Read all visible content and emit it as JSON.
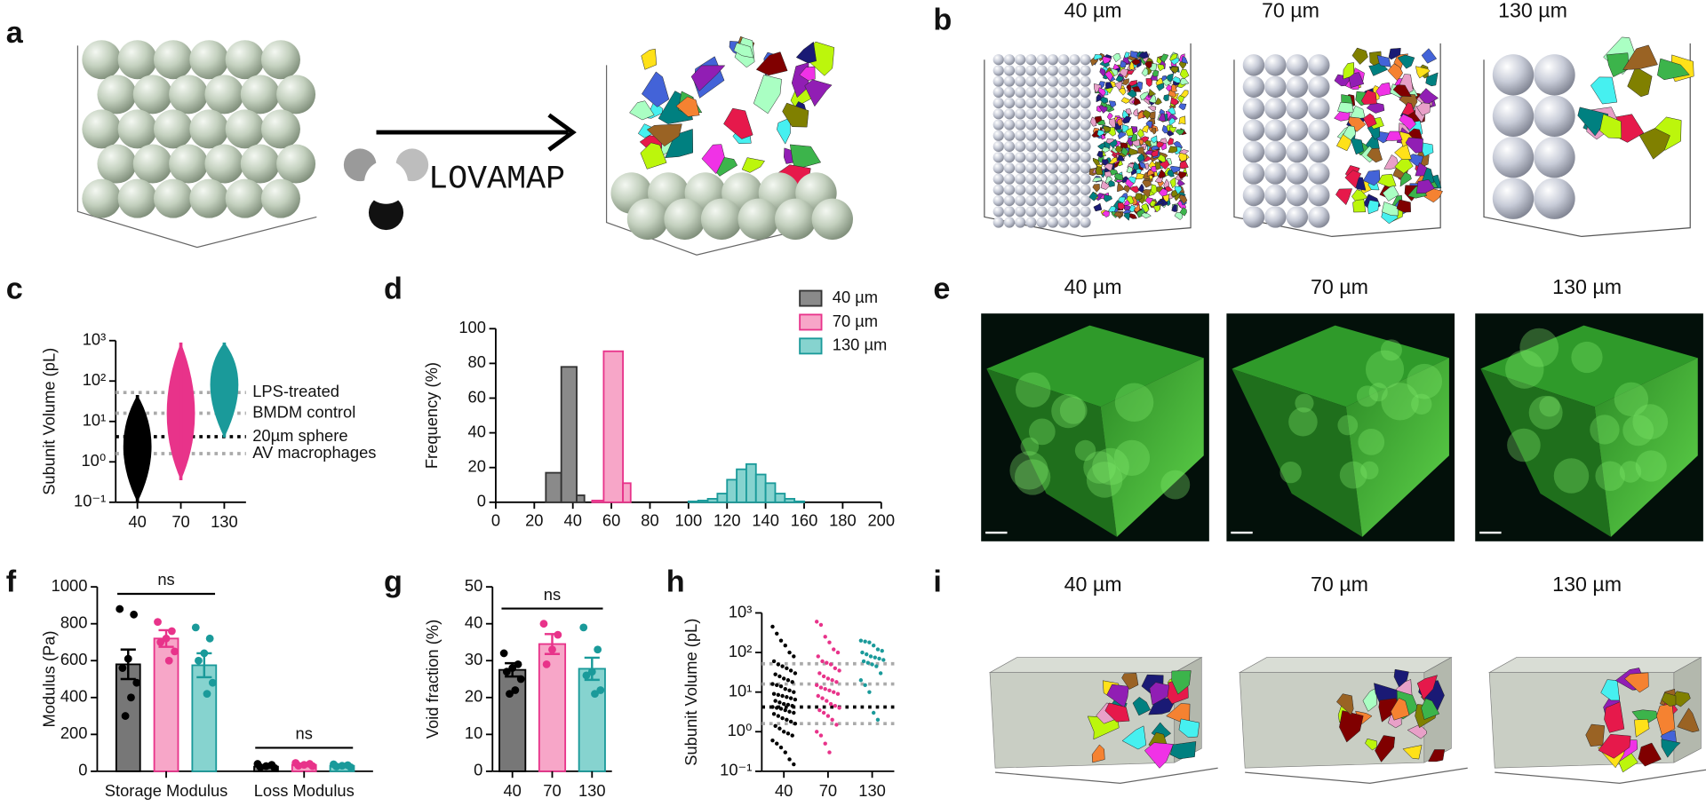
{
  "figure": {
    "panel_labels": [
      "a",
      "b",
      "c",
      "d",
      "e",
      "f",
      "g",
      "h",
      "i"
    ],
    "a": {
      "text": "LOVAMAP"
    },
    "b": {
      "titles": [
        "40 µm",
        "70 µm",
        "130 µm"
      ]
    },
    "e": {
      "titles": [
        "40 µm",
        "70 µm",
        "130 µm"
      ]
    },
    "i": {
      "titles": [
        "40 µm",
        "70 µm",
        "130 µm"
      ]
    }
  },
  "chart_data": [
    {
      "type": "violin",
      "ylabel": "Subunit Volume (pL)",
      "log_y": true,
      "categories": [
        "40",
        "70",
        "130"
      ],
      "ylim": [
        0.1,
        1000
      ],
      "yticks": [
        {
          "value": 0.1,
          "label": "10⁻¹"
        },
        {
          "value": 1,
          "label": "10⁰"
        },
        {
          "value": 10,
          "label": "10¹"
        },
        {
          "value": 100,
          "label": "10²"
        },
        {
          "value": 1000,
          "label": "10³"
        }
      ],
      "min": [
        0.1,
        0.35,
        4
      ],
      "peak": [
        2.7,
        14,
        110
      ],
      "max": [
        45,
        900,
        900
      ],
      "colors": [
        "#000000",
        "#e8338a",
        "#1a9a9a"
      ],
      "reference_lines": [
        {
          "value": 52,
          "label": "LPS-treated",
          "color": "#aaaaaa"
        },
        {
          "value": 16,
          "label": "BMDM control",
          "color": "#aaaaaa"
        },
        {
          "value": 4.2,
          "label": "20µm sphere",
          "color": "#000000"
        },
        {
          "value": 1.6,
          "label": "AV macrophages",
          "color": "#aaaaaa"
        }
      ]
    },
    {
      "type": "histogram",
      "ylabel": "Frequency (%)",
      "legend": "upper right",
      "xlim": [
        0,
        200
      ],
      "xticks": [
        0,
        20,
        40,
        60,
        80,
        100,
        120,
        140,
        160,
        180,
        200
      ],
      "ylim": [
        0,
        100
      ],
      "yticks": [
        0,
        20,
        40,
        60,
        80,
        100
      ],
      "series": [
        {
          "name": "40 µm",
          "color": "#333333",
          "fill_color": "#8a8a8a",
          "bins": [
            26,
            34,
            42,
            46
          ],
          "values": [
            17,
            78,
            4
          ]
        },
        {
          "name": "70 µm",
          "color": "#e8338a",
          "fill_color": "#f7a6c8",
          "bins": [
            50,
            56,
            66,
            70
          ],
          "values": [
            1,
            87,
            11
          ]
        },
        {
          "name": "130 µm",
          "color": "#1a9a9a",
          "fill_color": "#86d3cf",
          "bins": [
            100,
            105,
            110,
            115,
            120,
            125,
            130,
            135,
            140,
            145,
            150,
            155,
            160
          ],
          "values": [
            0.5,
            1,
            2,
            5,
            13,
            19,
            22,
            16,
            11,
            5,
            2,
            0.5
          ]
        }
      ]
    },
    {
      "type": "bar_dot",
      "ylabel": "Modulus (Pa)",
      "categories": [
        "Storage Modulus",
        "Loss Modulus"
      ],
      "ylim": [
        0,
        1000
      ],
      "yticks": [
        0,
        200,
        400,
        600,
        800,
        1000
      ],
      "annotations": [
        "ns",
        "ns"
      ],
      "series": [
        {
          "color": "#000000",
          "fill_color": "#777777",
          "values": [
            580,
            25
          ],
          "errors": [
            80,
            5
          ],
          "points": [
            [
              880,
              850,
              610,
              560,
              480,
              400,
              300
            ],
            [
              40,
              35,
              28,
              22,
              18
            ]
          ]
        },
        {
          "color": "#e8338a",
          "fill_color": "#f7a6c8",
          "values": [
            720,
            35
          ],
          "errors": [
            45,
            5
          ],
          "points": [
            [
              810,
              760,
              720,
              700,
              650,
              600
            ],
            [
              45,
              40,
              35,
              30,
              28
            ]
          ]
        },
        {
          "color": "#1a9a9a",
          "fill_color": "#86d3cf",
          "values": [
            575,
            30
          ],
          "errors": [
            65,
            5
          ],
          "points": [
            [
              780,
              720,
              640,
              600,
              480,
              420
            ],
            [
              38,
              33,
              30,
              26,
              22
            ]
          ]
        }
      ]
    },
    {
      "type": "bar_dot",
      "ylabel": "Void fraction (%)",
      "categories": [
        "40",
        "70",
        "130"
      ],
      "ylim": [
        0,
        50
      ],
      "yticks": [
        0,
        10,
        20,
        30,
        40,
        50
      ],
      "annotations": [
        "ns"
      ],
      "colors": [
        "#000000",
        "#e8338a",
        "#1a9a9a"
      ],
      "fill_colors": [
        "#777777",
        "#f7a6c8",
        "#86d3cf"
      ],
      "values": [
        27.5,
        34.5,
        27.8
      ],
      "errors": [
        1.8,
        2.7,
        3
      ],
      "points": [
        [
          32,
          29,
          28,
          27,
          25,
          22,
          21
        ],
        [
          40,
          37,
          33,
          29
        ],
        [
          39,
          33,
          27,
          26,
          22,
          21
        ]
      ]
    },
    {
      "type": "strip",
      "ylabel": "Subunit Volume (pL)",
      "log_y": true,
      "categories": [
        "40",
        "70",
        "130"
      ],
      "ylim": [
        0.1,
        1000
      ],
      "yticks": [
        {
          "value": 0.1,
          "label": "10⁻¹"
        },
        {
          "value": 1,
          "label": "10⁰"
        },
        {
          "value": 10,
          "label": "10¹"
        },
        {
          "value": 100,
          "label": "10²"
        },
        {
          "value": 1000,
          "label": "10³"
        }
      ],
      "colors": [
        "#000000",
        "#e8338a",
        "#1a9a9a"
      ],
      "reference_lines": [
        {
          "value": 52,
          "color": "#aaaaaa"
        },
        {
          "value": 16,
          "color": "#aaaaaa"
        },
        {
          "value": 4.2,
          "color": "#000000"
        },
        {
          "value": 1.6,
          "color": "#aaaaaa"
        }
      ],
      "points": [
        [
          450,
          300,
          200,
          150,
          100,
          80,
          60,
          50,
          45,
          40,
          35,
          30,
          28,
          25,
          22,
          20,
          18,
          16,
          15,
          14,
          12,
          11,
          10,
          9,
          8.5,
          8,
          7.5,
          7,
          6.5,
          6,
          5.5,
          5,
          4.8,
          4.5,
          4.2,
          4,
          3.8,
          3.5,
          3.2,
          3,
          2.8,
          2.5,
          2.2,
          2,
          1.8,
          1.6,
          1.4,
          1.2,
          1,
          0.9,
          0.8,
          0.6,
          0.5,
          0.4,
          0.3,
          0.2,
          0.15
        ],
        [
          600,
          500,
          250,
          180,
          120,
          100,
          80,
          60,
          55,
          50,
          40,
          35,
          30,
          25,
          22,
          20,
          18,
          15,
          13,
          12,
          11,
          10,
          9,
          8,
          7,
          6,
          5,
          4.5,
          4,
          3.5,
          3,
          2.5,
          2,
          1.5,
          1,
          0.8,
          0.5,
          0.3
        ],
        [
          200,
          190,
          180,
          150,
          120,
          110,
          100,
          90,
          80,
          75,
          70,
          65,
          60,
          55,
          50,
          45,
          30,
          20,
          15,
          10,
          3,
          2
        ]
      ]
    }
  ]
}
